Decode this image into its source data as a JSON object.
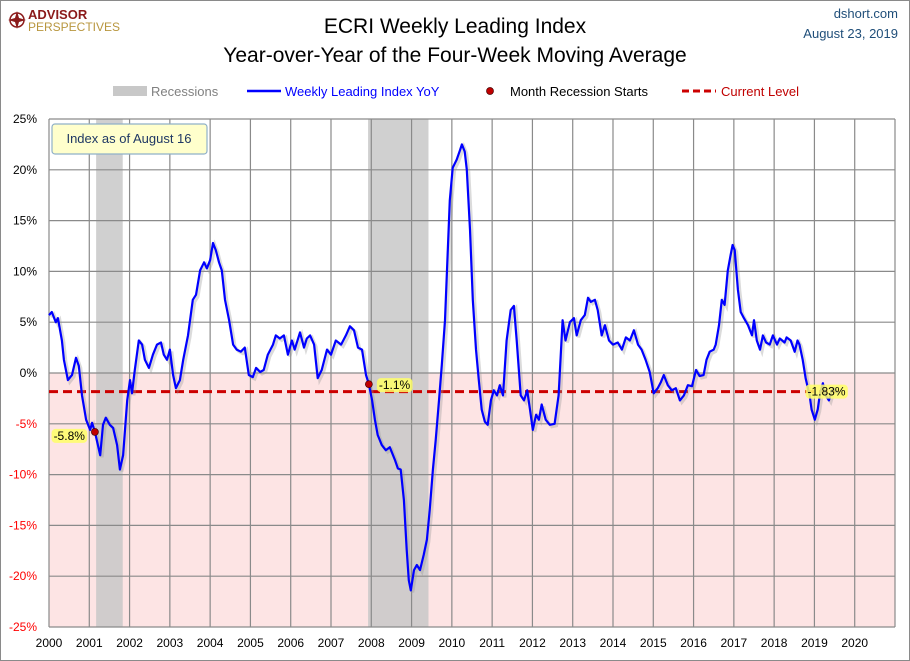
{
  "logo": {
    "line1": "ADVISOR",
    "line2": "PERSPECTIVES"
  },
  "source": {
    "site": "dshort.com",
    "date": "August 23, 2019"
  },
  "colors": {
    "series": "#0000ff",
    "current_level": "#cc0000",
    "recession": "#c8c8c8",
    "negative_zone": "#fde4e4",
    "negative_tick": "#ff0000",
    "logo": "#8b1a1a",
    "source": "#1f4e79",
    "highlight": "#ffff66"
  },
  "chart_data": {
    "type": "line",
    "title": "ECRI Weekly Leading Index",
    "subtitle": "Year-over-Year of the Four-Week Moving Average",
    "xlim": [
      2000,
      2021
    ],
    "ylim": [
      -25,
      25
    ],
    "x_ticks": [
      "2000",
      "2001",
      "2002",
      "2003",
      "2004",
      "2005",
      "2006",
      "2007",
      "2008",
      "2009",
      "2010",
      "2011",
      "2012",
      "2013",
      "2014",
      "2015",
      "2016",
      "2017",
      "2018",
      "2019",
      "2020"
    ],
    "y_ticks": [
      "25%",
      "20%",
      "15%",
      "10%",
      "5%",
      "0%",
      "-5%",
      "-10%",
      "-15%",
      "-20%",
      "-25%"
    ],
    "grid": true,
    "legend_position": "top",
    "legend": {
      "recessions": "Recessions",
      "series": "Weekly Leading Index YoY",
      "recession_start": "Month Recession Starts",
      "current": "Current Level"
    },
    "annotation_box": "Index as of August 16",
    "recessions": [
      [
        2001.17,
        2001.83
      ],
      [
        2007.92,
        2009.42
      ]
    ],
    "recession_starts": [
      {
        "x": 2001.14,
        "y": -5.8,
        "label": "-5.8%"
      },
      {
        "x": 2007.94,
        "y": -1.1,
        "label": "-1.1%"
      }
    ],
    "current_level": {
      "value": -1.83,
      "label": "-1.83%"
    },
    "series": [
      {
        "name": "Weekly Leading Index YoY",
        "points": [
          [
            2000.0,
            5.7
          ],
          [
            2000.07,
            6.0
          ],
          [
            2000.17,
            5.0
          ],
          [
            2000.22,
            5.4
          ],
          [
            2000.32,
            3.2
          ],
          [
            2000.37,
            1.3
          ],
          [
            2000.47,
            -0.7
          ],
          [
            2000.57,
            -0.2
          ],
          [
            2000.67,
            1.5
          ],
          [
            2000.74,
            0.7
          ],
          [
            2000.82,
            -2.2
          ],
          [
            2000.92,
            -4.6
          ],
          [
            2001.02,
            -5.6
          ],
          [
            2001.07,
            -4.9
          ],
          [
            2001.14,
            -5.8
          ],
          [
            2001.27,
            -8.1
          ],
          [
            2001.34,
            -5.1
          ],
          [
            2001.41,
            -4.4
          ],
          [
            2001.51,
            -5.1
          ],
          [
            2001.59,
            -5.4
          ],
          [
            2001.69,
            -7.1
          ],
          [
            2001.76,
            -9.5
          ],
          [
            2001.84,
            -8.1
          ],
          [
            2001.94,
            -2.7
          ],
          [
            2002.01,
            -0.7
          ],
          [
            2002.06,
            -2.0
          ],
          [
            2002.13,
            0.3
          ],
          [
            2002.23,
            3.2
          ],
          [
            2002.31,
            2.8
          ],
          [
            2002.38,
            1.3
          ],
          [
            2002.48,
            0.5
          ],
          [
            2002.58,
            1.8
          ],
          [
            2002.68,
            2.8
          ],
          [
            2002.78,
            3.0
          ],
          [
            2002.85,
            1.8
          ],
          [
            2002.93,
            1.3
          ],
          [
            2003.0,
            2.3
          ],
          [
            2003.08,
            -0.2
          ],
          [
            2003.15,
            -1.5
          ],
          [
            2003.25,
            -0.7
          ],
          [
            2003.33,
            1.3
          ],
          [
            2003.45,
            3.7
          ],
          [
            2003.57,
            7.2
          ],
          [
            2003.65,
            7.7
          ],
          [
            2003.75,
            10.1
          ],
          [
            2003.85,
            10.9
          ],
          [
            2003.92,
            10.3
          ],
          [
            2004.0,
            11.1
          ],
          [
            2004.07,
            12.8
          ],
          [
            2004.14,
            12.1
          ],
          [
            2004.22,
            10.9
          ],
          [
            2004.29,
            10.1
          ],
          [
            2004.37,
            7.2
          ],
          [
            2004.47,
            5.2
          ],
          [
            2004.57,
            2.8
          ],
          [
            2004.66,
            2.3
          ],
          [
            2004.76,
            2.1
          ],
          [
            2004.86,
            2.5
          ],
          [
            2004.96,
            -0.2
          ],
          [
            2005.06,
            -0.4
          ],
          [
            2005.14,
            0.5
          ],
          [
            2005.24,
            0.1
          ],
          [
            2005.33,
            0.3
          ],
          [
            2005.43,
            1.8
          ],
          [
            2005.56,
            2.8
          ],
          [
            2005.63,
            3.7
          ],
          [
            2005.73,
            3.4
          ],
          [
            2005.83,
            3.7
          ],
          [
            2005.93,
            1.8
          ],
          [
            2006.03,
            3.2
          ],
          [
            2006.1,
            2.3
          ],
          [
            2006.23,
            4.0
          ],
          [
            2006.33,
            2.5
          ],
          [
            2006.4,
            3.4
          ],
          [
            2006.48,
            3.7
          ],
          [
            2006.58,
            2.8
          ],
          [
            2006.67,
            -0.5
          ],
          [
            2006.77,
            0.3
          ],
          [
            2006.9,
            2.3
          ],
          [
            2007.0,
            1.8
          ],
          [
            2007.12,
            3.2
          ],
          [
            2007.25,
            2.8
          ],
          [
            2007.37,
            3.7
          ],
          [
            2007.47,
            4.6
          ],
          [
            2007.57,
            4.2
          ],
          [
            2007.67,
            2.5
          ],
          [
            2007.77,
            2.3
          ],
          [
            2007.87,
            -0.2
          ],
          [
            2007.94,
            -1.1
          ],
          [
            2008.02,
            -2.7
          ],
          [
            2008.09,
            -4.6
          ],
          [
            2008.16,
            -6.1
          ],
          [
            2008.26,
            -7.1
          ],
          [
            2008.36,
            -7.6
          ],
          [
            2008.46,
            -7.3
          ],
          [
            2008.59,
            -8.6
          ],
          [
            2008.66,
            -9.4
          ],
          [
            2008.73,
            -9.5
          ],
          [
            2008.81,
            -12.5
          ],
          [
            2008.88,
            -17.4
          ],
          [
            2008.93,
            -20.4
          ],
          [
            2008.98,
            -21.4
          ],
          [
            2009.06,
            -19.4
          ],
          [
            2009.13,
            -18.9
          ],
          [
            2009.21,
            -19.4
          ],
          [
            2009.3,
            -17.9
          ],
          [
            2009.38,
            -16.4
          ],
          [
            2009.45,
            -13.5
          ],
          [
            2009.53,
            -9.5
          ],
          [
            2009.6,
            -6.6
          ],
          [
            2009.68,
            -2.7
          ],
          [
            2009.75,
            0.8
          ],
          [
            2009.83,
            5.2
          ],
          [
            2009.9,
            12.1
          ],
          [
            2009.95,
            17.0
          ],
          [
            2010.02,
            20.2
          ],
          [
            2010.12,
            21.0
          ],
          [
            2010.2,
            21.9
          ],
          [
            2010.25,
            22.5
          ],
          [
            2010.32,
            21.8
          ],
          [
            2010.37,
            20.0
          ],
          [
            2010.45,
            14.1
          ],
          [
            2010.52,
            7.2
          ],
          [
            2010.6,
            2.3
          ],
          [
            2010.67,
            -0.7
          ],
          [
            2010.74,
            -3.6
          ],
          [
            2010.82,
            -4.8
          ],
          [
            2010.89,
            -5.1
          ],
          [
            2010.97,
            -2.7
          ],
          [
            2011.04,
            -1.7
          ],
          [
            2011.12,
            -2.2
          ],
          [
            2011.19,
            -1.2
          ],
          [
            2011.27,
            -2.2
          ],
          [
            2011.36,
            3.2
          ],
          [
            2011.46,
            6.2
          ],
          [
            2011.54,
            6.6
          ],
          [
            2011.61,
            3.2
          ],
          [
            2011.71,
            -2.2
          ],
          [
            2011.79,
            -2.7
          ],
          [
            2011.87,
            -1.7
          ],
          [
            2011.94,
            -3.6
          ],
          [
            2012.01,
            -5.6
          ],
          [
            2012.09,
            -4.1
          ],
          [
            2012.16,
            -4.6
          ],
          [
            2012.23,
            -3.1
          ],
          [
            2012.33,
            -4.6
          ],
          [
            2012.43,
            -5.1
          ],
          [
            2012.55,
            -5.0
          ],
          [
            2012.65,
            -2.2
          ],
          [
            2012.75,
            5.2
          ],
          [
            2012.82,
            3.2
          ],
          [
            2012.93,
            5.0
          ],
          [
            2013.03,
            5.4
          ],
          [
            2013.1,
            3.7
          ],
          [
            2013.2,
            5.2
          ],
          [
            2013.3,
            5.7
          ],
          [
            2013.38,
            7.4
          ],
          [
            2013.45,
            7.0
          ],
          [
            2013.55,
            7.2
          ],
          [
            2013.62,
            6.2
          ],
          [
            2013.72,
            3.7
          ],
          [
            2013.8,
            4.7
          ],
          [
            2013.9,
            3.2
          ],
          [
            2014.0,
            2.8
          ],
          [
            2014.12,
            3.0
          ],
          [
            2014.22,
            2.3
          ],
          [
            2014.32,
            3.5
          ],
          [
            2014.42,
            3.2
          ],
          [
            2014.52,
            4.2
          ],
          [
            2014.62,
            2.8
          ],
          [
            2014.71,
            2.3
          ],
          [
            2014.81,
            1.3
          ],
          [
            2014.91,
            0.1
          ],
          [
            2015.01,
            -2.0
          ],
          [
            2015.11,
            -1.5
          ],
          [
            2015.19,
            -0.9
          ],
          [
            2015.26,
            -0.2
          ],
          [
            2015.36,
            -1.2
          ],
          [
            2015.46,
            -1.7
          ],
          [
            2015.56,
            -1.5
          ],
          [
            2015.66,
            -2.7
          ],
          [
            2015.76,
            -2.2
          ],
          [
            2015.86,
            -1.2
          ],
          [
            2015.96,
            -1.3
          ],
          [
            2016.06,
            0.3
          ],
          [
            2016.15,
            -0.3
          ],
          [
            2016.25,
            -0.2
          ],
          [
            2016.32,
            1.3
          ],
          [
            2016.4,
            2.1
          ],
          [
            2016.5,
            2.3
          ],
          [
            2016.55,
            2.8
          ],
          [
            2016.63,
            4.7
          ],
          [
            2016.7,
            7.2
          ],
          [
            2016.77,
            6.7
          ],
          [
            2016.85,
            10.1
          ],
          [
            2016.92,
            11.6
          ],
          [
            2016.97,
            12.6
          ],
          [
            2017.02,
            12.1
          ],
          [
            2017.1,
            8.2
          ],
          [
            2017.17,
            6.0
          ],
          [
            2017.25,
            5.4
          ],
          [
            2017.35,
            4.7
          ],
          [
            2017.45,
            3.7
          ],
          [
            2017.5,
            5.2
          ],
          [
            2017.57,
            3.2
          ],
          [
            2017.65,
            2.3
          ],
          [
            2017.72,
            3.7
          ],
          [
            2017.8,
            3.0
          ],
          [
            2017.89,
            2.8
          ],
          [
            2017.97,
            3.7
          ],
          [
            2018.07,
            2.8
          ],
          [
            2018.14,
            3.4
          ],
          [
            2018.26,
            3.0
          ],
          [
            2018.31,
            3.5
          ],
          [
            2018.41,
            3.2
          ],
          [
            2018.51,
            2.1
          ],
          [
            2018.58,
            3.2
          ],
          [
            2018.63,
            2.8
          ],
          [
            2018.71,
            1.3
          ],
          [
            2018.78,
            -0.5
          ],
          [
            2018.88,
            -2.2
          ],
          [
            2018.93,
            -3.6
          ],
          [
            2019.01,
            -4.6
          ],
          [
            2019.08,
            -3.6
          ],
          [
            2019.13,
            -2.2
          ],
          [
            2019.21,
            -1.0
          ],
          [
            2019.28,
            -2.2
          ],
          [
            2019.36,
            -2.7
          ],
          [
            2019.43,
            -1.7
          ],
          [
            2019.48,
            -1.5
          ],
          [
            2019.55,
            -1.9
          ],
          [
            2019.6,
            -1.83
          ]
        ]
      }
    ]
  }
}
